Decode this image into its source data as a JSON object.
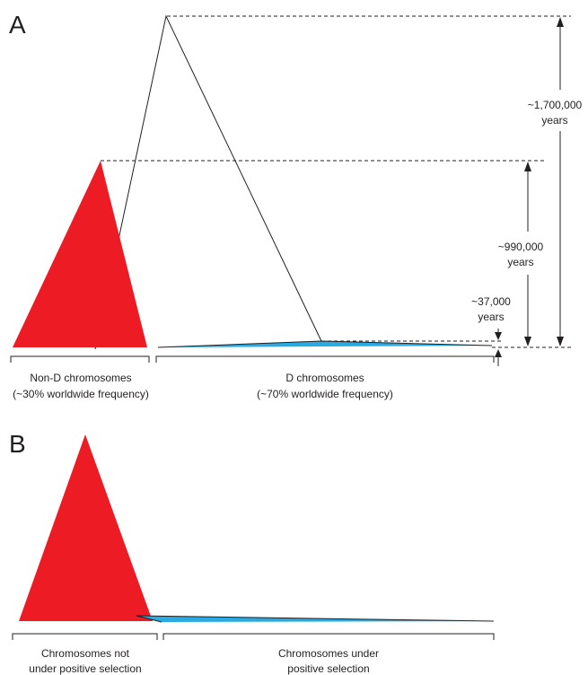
{
  "panel_a": {
    "label": "A",
    "group_left": {
      "line1": "Non-D chromosomes",
      "line2": "(~30% worldwide frequency)"
    },
    "group_right": {
      "line1": "D chromosomes",
      "line2": "(~70% worldwide frequency)"
    },
    "age_1": {
      "line1": "~1,700,000",
      "line2": "years"
    },
    "age_2": {
      "line1": "~990,000",
      "line2": "years"
    },
    "age_3": {
      "line1": "~37,000",
      "line2": "years"
    }
  },
  "panel_b": {
    "label": "B",
    "group_left": {
      "line1": "Chromosomes not",
      "line2": "under positive selection"
    },
    "group_right": {
      "line1": "Chromosomes under",
      "line2": "positive  selection"
    }
  },
  "colors": {
    "non_selected": "#ed1c24",
    "selected": "#29abe2",
    "ink": "#231f20"
  }
}
